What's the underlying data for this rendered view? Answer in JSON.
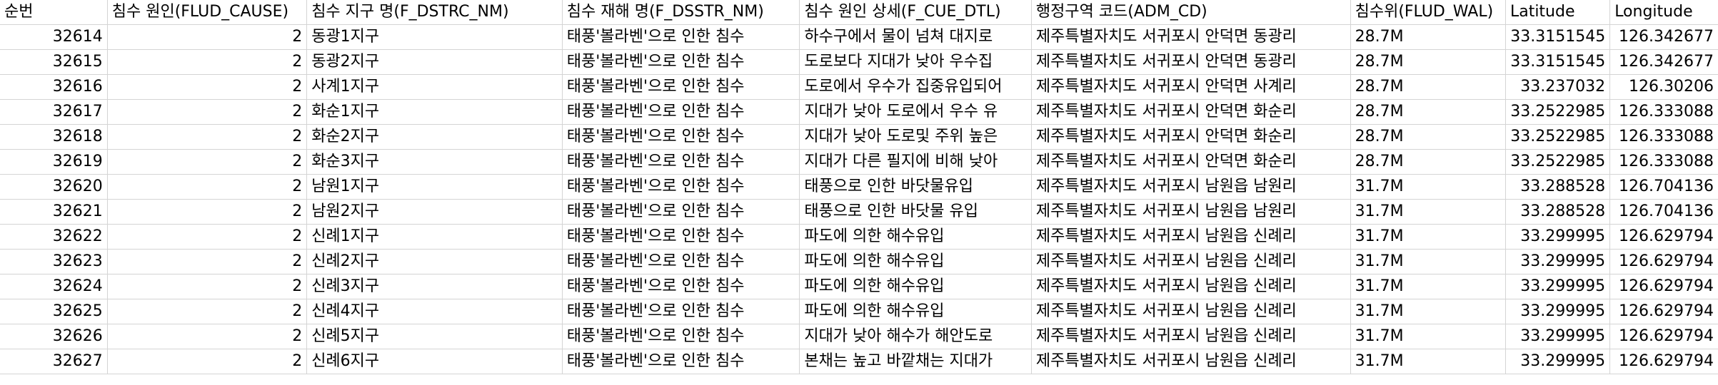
{
  "sheet": {
    "columns": [
      {
        "key": "seq",
        "header": "순번"
      },
      {
        "key": "cause",
        "header": "침수 원인(FLUD_CAUSE)"
      },
      {
        "key": "district",
        "header": "침수 지구 명(F_DSTRC_NM)"
      },
      {
        "key": "disaster",
        "header": "침수 재해 명(F_DSSTR_NM)"
      },
      {
        "key": "detail",
        "header": "침수 원인 상세(F_CUE_DTL)"
      },
      {
        "key": "admcode",
        "header": "행정구역 코드(ADM_CD)"
      },
      {
        "key": "level",
        "header": "침수위(FLUD_WAL)"
      },
      {
        "key": "lat",
        "header": "Latitude"
      },
      {
        "key": "lon",
        "header": "Longitude"
      }
    ],
    "rows": [
      [
        "32614",
        "2",
        "동광1지구",
        "태풍'볼라벤'으로 인한 침수",
        "하수구에서 물이 넘쳐 대지로",
        "제주특별자치도 서귀포시 안덕면 동광리",
        "28.7M",
        "33.3151545",
        "126.342677"
      ],
      [
        "32615",
        "2",
        "동광2지구",
        "태풍'볼라벤'으로 인한 침수",
        "도로보다 지대가 낮아 우수집",
        "제주특별자치도 서귀포시 안덕면 동광리",
        "28.7M",
        "33.3151545",
        "126.342677"
      ],
      [
        "32616",
        "2",
        "사계1지구",
        "태풍'볼라벤'으로 인한 침수",
        "도로에서 우수가 집중유입되어",
        "제주특별자치도 서귀포시 안덕면 사계리",
        "28.7M",
        "33.237032",
        "126.30206"
      ],
      [
        "32617",
        "2",
        "화순1지구",
        "태풍'볼라벤'으로 인한 침수",
        "지대가 낮아 도로에서 우수 유",
        "제주특별자치도 서귀포시 안덕면 화순리",
        "28.7M",
        "33.2522985",
        "126.333088"
      ],
      [
        "32618",
        "2",
        "화순2지구",
        "태풍'볼라벤'으로 인한 침수",
        "지대가 낮아 도로및 주위 높은",
        "제주특별자치도 서귀포시 안덕면 화순리",
        "28.7M",
        "33.2522985",
        "126.333088"
      ],
      [
        "32619",
        "2",
        "화순3지구",
        "태풍'볼라벤'으로 인한 침수",
        "지대가 다른 필지에 비해 낮아",
        "제주특별자치도 서귀포시 안덕면 화순리",
        "28.7M",
        "33.2522985",
        "126.333088"
      ],
      [
        "32620",
        "2",
        "남원1지구",
        "태풍'볼라벤'으로 인한 침수",
        "태풍으로 인한 바닷물유입",
        "제주특별자치도 서귀포시 남원읍 남원리",
        "31.7M",
        "33.288528",
        "126.704136"
      ],
      [
        "32621",
        "2",
        "남원2지구",
        "태풍'볼라벤'으로 인한 침수",
        "태풍으로 인한 바닷물 유입",
        "제주특별자치도 서귀포시 남원읍 남원리",
        "31.7M",
        "33.288528",
        "126.704136"
      ],
      [
        "32622",
        "2",
        "신례1지구",
        "태풍'볼라벤'으로 인한 침수",
        "파도에 의한 해수유입",
        "제주특별자치도 서귀포시 남원읍 신례리",
        "31.7M",
        "33.299995",
        "126.629794"
      ],
      [
        "32623",
        "2",
        "신례2지구",
        "태풍'볼라벤'으로 인한 침수",
        "파도에 의한 해수유입",
        "제주특별자치도 서귀포시 남원읍 신례리",
        "31.7M",
        "33.299995",
        "126.629794"
      ],
      [
        "32624",
        "2",
        "신례3지구",
        "태풍'볼라벤'으로 인한 침수",
        "파도에 의한 해수유입",
        "제주특별자치도 서귀포시 남원읍 신례리",
        "31.7M",
        "33.299995",
        "126.629794"
      ],
      [
        "32625",
        "2",
        "신례4지구",
        "태풍'볼라벤'으로 인한 침수",
        "파도에 의한 해수유입",
        "제주특별자치도 서귀포시 남원읍 신례리",
        "31.7M",
        "33.299995",
        "126.629794"
      ],
      [
        "32626",
        "2",
        "신례5지구",
        "태풍'볼라벤'으로 인한 침수",
        "지대가 낮아 해수가 해안도로",
        "제주특별자치도 서귀포시 남원읍 신례리",
        "31.7M",
        "33.299995",
        "126.629794"
      ],
      [
        "32627",
        "2",
        "신례6지구",
        "태풍'볼라벤'으로 인한 침수",
        "본채는 높고 바깥채는 지대가",
        "제주특별자치도 서귀포시 남원읍 신례리",
        "31.7M",
        "33.299995",
        "126.629794"
      ]
    ]
  }
}
